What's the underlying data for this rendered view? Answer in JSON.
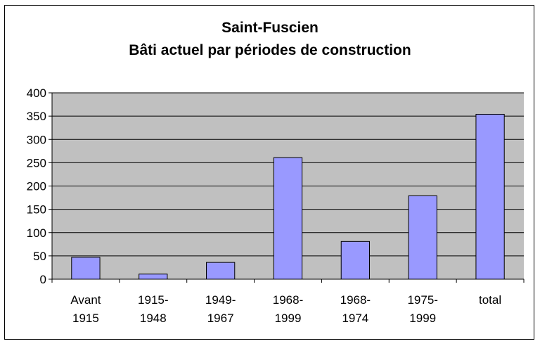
{
  "chart_data": {
    "type": "bar",
    "title": "Saint-Fuscien",
    "subtitle": "Bâti actuel par périodes de construction",
    "categories": [
      [
        "Avant",
        "1915"
      ],
      [
        "1915-",
        "1948"
      ],
      [
        "1949-",
        "1967"
      ],
      [
        "1968-",
        "1999"
      ],
      [
        "1968-",
        "1974"
      ],
      [
        "1975-",
        "1999"
      ],
      [
        "total"
      ]
    ],
    "values": [
      47,
      11,
      36,
      261,
      81,
      179,
      354
    ],
    "ylim": [
      0,
      400
    ],
    "yticks": [
      0,
      50,
      100,
      150,
      200,
      250,
      300,
      350,
      400
    ],
    "grid": true,
    "legend": "none",
    "colors": {
      "bar": "#9999ff",
      "plot_bg": "#c0c0c0",
      "bar_border": "#000000"
    }
  }
}
